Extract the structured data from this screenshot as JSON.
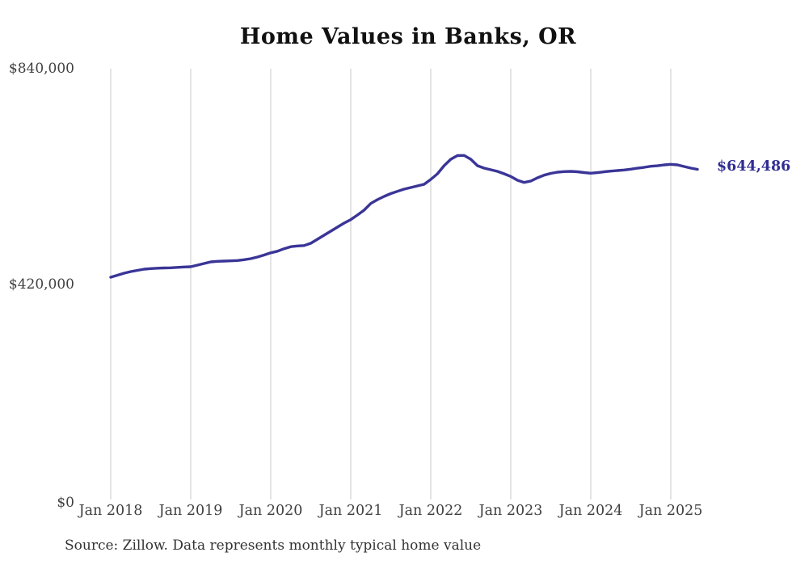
{
  "chart_data": {
    "type": "line",
    "title": "Home Values in Banks, OR",
    "source_note": "Source: Zillow. Data represents monthly typical home value",
    "end_label": "$644,486",
    "legend": "none",
    "grid": "vertical gridlines at each January, no horizontal gridlines",
    "ylim": [
      0,
      840000
    ],
    "y_tick_labels": [
      "$0",
      "$420,000",
      "$840,000"
    ],
    "y_tick_values": [
      0,
      420000,
      840000
    ],
    "x_tick_labels": [
      "Jan 2018",
      "Jan 2019",
      "Jan 2020",
      "Jan 2021",
      "Jan 2022",
      "Jan 2023",
      "Jan 2024",
      "Jan 2025"
    ],
    "line_color": "#3a3597",
    "series": [
      {
        "name": "Monthly typical home value",
        "frequency": "monthly",
        "start_month": "2018-01",
        "end_month": "2025-05",
        "values": [
          434900,
          438800,
          442700,
          445900,
          448200,
          450600,
          451700,
          452500,
          452900,
          453300,
          454100,
          454900,
          455300,
          458400,
          461600,
          464700,
          465800,
          466300,
          466800,
          467400,
          469000,
          471000,
          474200,
          478100,
          482400,
          485500,
          490300,
          494200,
          495700,
          496500,
          500800,
          508700,
          516500,
          524400,
          532200,
          540100,
          546900,
          555800,
          565200,
          578300,
          585600,
          591900,
          597400,
          601800,
          606000,
          609200,
          612300,
          615400,
          624900,
          635900,
          651600,
          664100,
          671200,
          671500,
          664100,
          651600,
          646900,
          643800,
          640600,
          635900,
          630700,
          623300,
          619100,
          621800,
          628000,
          633200,
          636600,
          639000,
          640100,
          640600,
          639800,
          638200,
          637000,
          638200,
          639800,
          641000,
          642100,
          643200,
          644800,
          646900,
          648400,
          650500,
          651500,
          653100,
          654200,
          653100,
          650000,
          646900,
          644486
        ],
        "latest_value": 644486
      }
    ]
  }
}
